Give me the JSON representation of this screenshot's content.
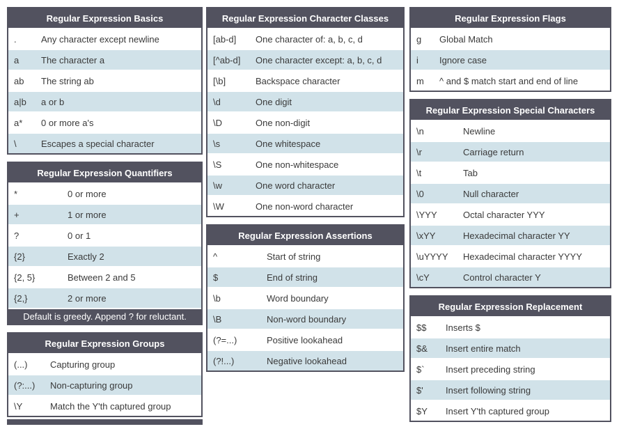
{
  "theme": {
    "page_bg": "#ffffff",
    "header_bg": "#52525f",
    "header_text": "#ffffff",
    "row_odd_bg": "#ffffff",
    "row_even_bg": "#d1e2e9",
    "cell_text": "#3a3a3a"
  },
  "tables": {
    "basics": {
      "title": "Regular Expression Basics",
      "rows": [
        {
          "pattern": ".",
          "description": "Any character except newline"
        },
        {
          "pattern": "a",
          "description": "The character a"
        },
        {
          "pattern": "ab",
          "description": "The string ab"
        },
        {
          "pattern": "a|b",
          "description": "a or b"
        },
        {
          "pattern": "a*",
          "description": "0 or more a's"
        },
        {
          "pattern": "\\",
          "description": "Escapes a special character"
        }
      ]
    },
    "quantifiers": {
      "title": "Regular Expression Quantifiers",
      "rows": [
        {
          "pattern": "*",
          "description": "0 or more"
        },
        {
          "pattern": "+",
          "description": "1 or more"
        },
        {
          "pattern": "?",
          "description": "0 or 1"
        },
        {
          "pattern": "{2}",
          "description": "Exactly 2"
        },
        {
          "pattern": "{2, 5}",
          "description": "Between 2 and 5"
        },
        {
          "pattern": "{2,}",
          "description": "2 or more"
        }
      ],
      "footer": "Default is greedy. Append ? for reluctant."
    },
    "groups": {
      "title": "Regular Expression Groups",
      "rows": [
        {
          "pattern": "(...)",
          "description": "Capturing group"
        },
        {
          "pattern": "(?:...)",
          "description": "Non-capturing group"
        },
        {
          "pattern": "\\Y",
          "description": "Match the Y'th captured group"
        }
      ]
    },
    "character_classes": {
      "title": "Regular Expression Character Classes",
      "rows": [
        {
          "pattern": "[ab-d]",
          "description": "One character of: a, b, c, d"
        },
        {
          "pattern": "[^ab-d]",
          "description": "One character except: a, b, c, d"
        },
        {
          "pattern": "[\\b]",
          "description": "Backspace character"
        },
        {
          "pattern": "\\d",
          "description": "One digit"
        },
        {
          "pattern": "\\D",
          "description": "One non-digit"
        },
        {
          "pattern": "\\s",
          "description": "One whitespace"
        },
        {
          "pattern": "\\S",
          "description": "One non-whitespace"
        },
        {
          "pattern": "\\w",
          "description": "One word character"
        },
        {
          "pattern": "\\W",
          "description": "One non-word character"
        }
      ]
    },
    "assertions": {
      "title": "Regular Expression Assertions",
      "rows": [
        {
          "pattern": "^",
          "description": "Start of string"
        },
        {
          "pattern": "$",
          "description": "End of string"
        },
        {
          "pattern": "\\b",
          "description": "Word boundary"
        },
        {
          "pattern": "\\B",
          "description": "Non-word boundary"
        },
        {
          "pattern": "(?=...)",
          "description": "Positive lookahead"
        },
        {
          "pattern": "(?!...)",
          "description": "Negative lookahead"
        }
      ]
    },
    "flags": {
      "title": "Regular Expression Flags",
      "rows": [
        {
          "pattern": "g",
          "description": "Global Match"
        },
        {
          "pattern": "i",
          "description": "Ignore case"
        },
        {
          "pattern": "m",
          "description": "^ and $ match start and end of line"
        }
      ]
    },
    "special_characters": {
      "title": "Regular Expression Special Characters",
      "rows": [
        {
          "pattern": "\\n",
          "description": "Newline"
        },
        {
          "pattern": "\\r",
          "description": "Carriage return"
        },
        {
          "pattern": "\\t",
          "description": "Tab"
        },
        {
          "pattern": "\\0",
          "description": "Null character"
        },
        {
          "pattern": "\\YYY",
          "description": "Octal character YYY"
        },
        {
          "pattern": "\\xYY",
          "description": "Hexadecimal character YY"
        },
        {
          "pattern": "\\uYYYY",
          "description": "Hexadecimal character YYYY"
        },
        {
          "pattern": "\\cY",
          "description": "Control character Y"
        }
      ]
    },
    "replacement": {
      "title": "Regular Expression Replacement",
      "rows": [
        {
          "pattern": "$$",
          "description": "Inserts $"
        },
        {
          "pattern": "$&",
          "description": "Insert entire match"
        },
        {
          "pattern": "$`",
          "description": "Insert preceding string"
        },
        {
          "pattern": "$'",
          "description": "Insert following string"
        },
        {
          "pattern": "$Y",
          "description": "Insert Y'th captured group"
        }
      ]
    }
  }
}
